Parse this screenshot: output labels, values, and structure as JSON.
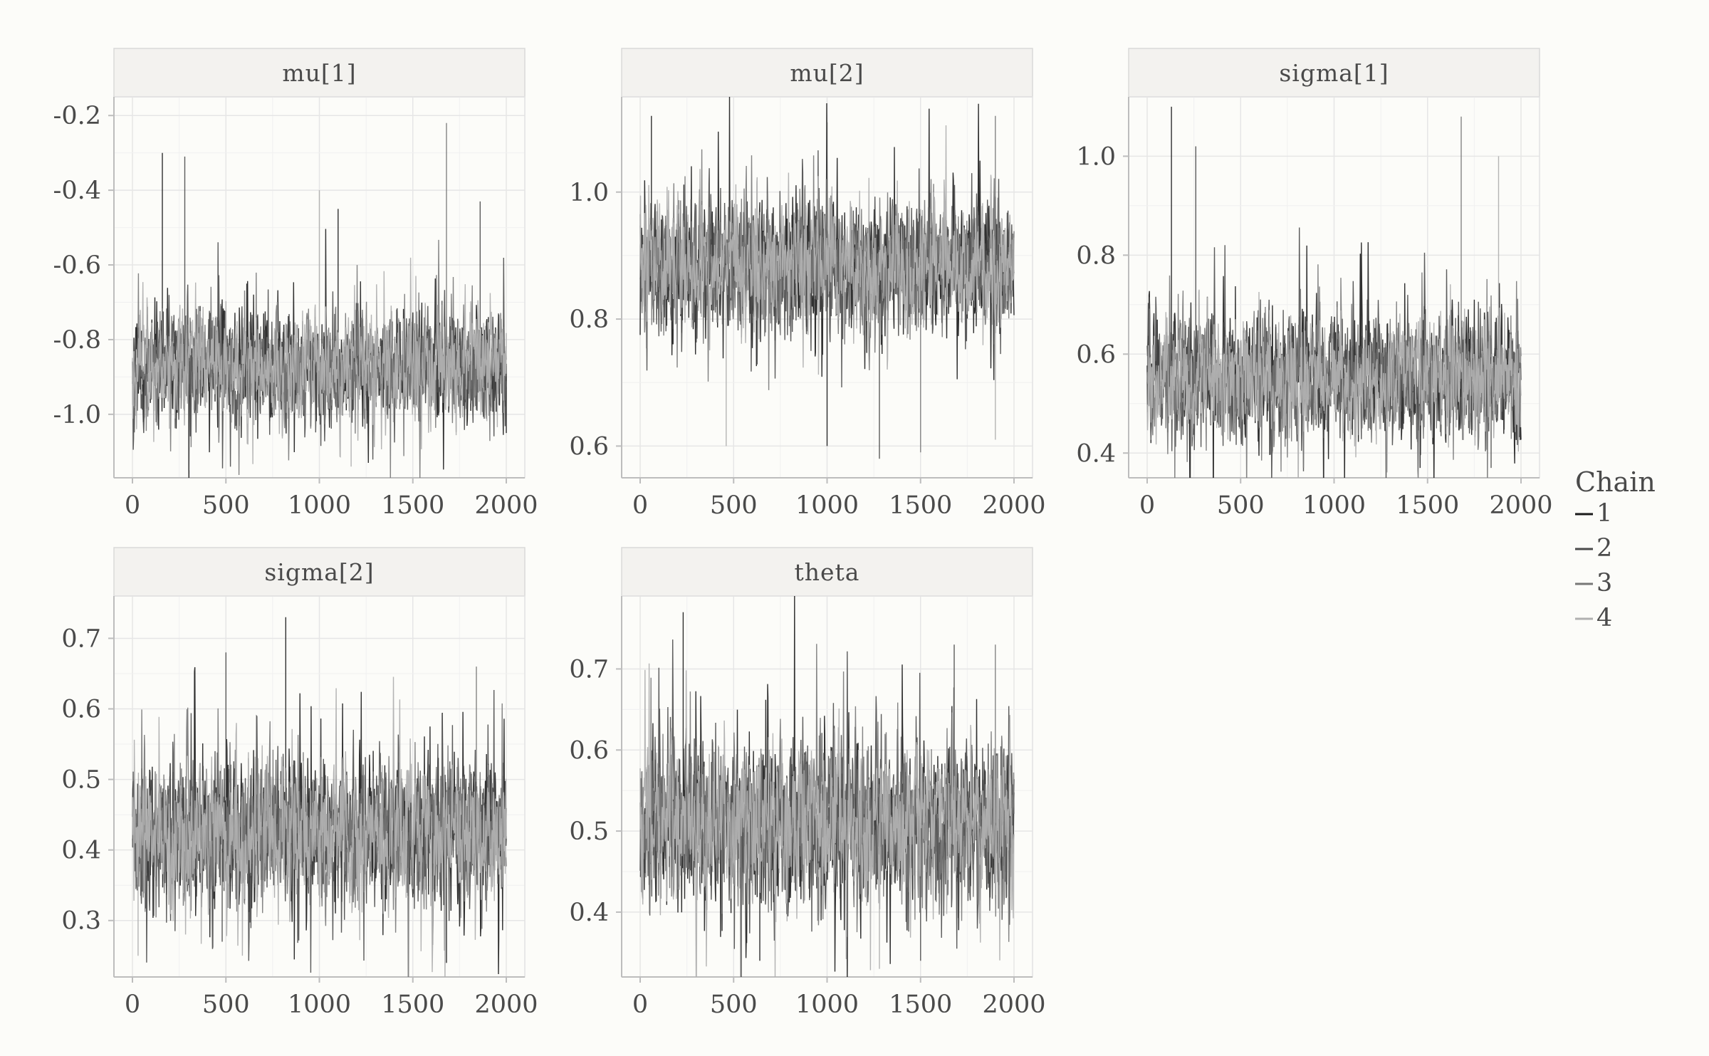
{
  "chart_data": {
    "type": "line",
    "legend": {
      "title": "Chain",
      "position": "right"
    },
    "series_colors": [
      "#1a1a1a",
      "#4a4a4a",
      "#777777",
      "#b0b0b0"
    ],
    "series": [
      {
        "name": "1",
        "color": "#1a1a1a"
      },
      {
        "name": "2",
        "color": "#4a4a4a"
      },
      {
        "name": "3",
        "color": "#777777"
      },
      {
        "name": "4",
        "color": "#b0b0b0"
      }
    ],
    "grid": true,
    "panels": [
      {
        "title": "mu[1]",
        "xlim": [
          0,
          2000
        ],
        "ylim": [
          -1.17,
          -0.15
        ],
        "xticks": [
          0,
          500,
          1000,
          1500,
          2000
        ],
        "xtick_labels": [
          "0",
          "500",
          "1000",
          "1500",
          "2000"
        ],
        "yticks": [
          -0.2,
          -0.4,
          -0.6,
          -0.8,
          -1.0
        ],
        "ytick_labels": [
          "-0.2",
          "-0.4",
          "-0.6",
          "-0.8",
          "-1.0"
        ],
        "center": -0.87,
        "spread": 0.065,
        "n_iterations": 2000,
        "extremes": [
          [
            160,
            -0.3
          ],
          [
            280,
            -0.31
          ],
          [
            1680,
            -0.22
          ],
          [
            1000,
            -0.4
          ],
          [
            1100,
            -0.45
          ],
          [
            1860,
            -0.43
          ],
          [
            300,
            -1.15
          ],
          [
            1170,
            -1.14
          ],
          [
            2000,
            -1.05
          ]
        ]
      },
      {
        "title": "mu[2]",
        "xlim": [
          0,
          2000
        ],
        "ylim": [
          0.55,
          1.15
        ],
        "xticks": [
          0,
          500,
          1000,
          1500,
          2000
        ],
        "xtick_labels": [
          "0",
          "500",
          "1000",
          "1500",
          "2000"
        ],
        "yticks": [
          1.0,
          0.8,
          0.6
        ],
        "ytick_labels": [
          "1.0",
          "0.8",
          "0.6"
        ],
        "center": 0.885,
        "spread": 0.045,
        "n_iterations": 2000,
        "extremes": [
          [
            60,
            1.12
          ],
          [
            1000,
            1.11
          ],
          [
            1900,
            1.12
          ],
          [
            460,
            0.6
          ],
          [
            1000,
            0.6
          ],
          [
            1280,
            0.58
          ],
          [
            1500,
            0.59
          ],
          [
            1900,
            0.61
          ]
        ]
      },
      {
        "title": "sigma[1]",
        "xlim": [
          0,
          2000
        ],
        "ylim": [
          0.35,
          1.12
        ],
        "xticks": [
          0,
          500,
          1000,
          1500,
          2000
        ],
        "xtick_labels": [
          "0",
          "500",
          "1000",
          "1500",
          "2000"
        ],
        "yticks": [
          1.0,
          0.8,
          0.6,
          0.4
        ],
        "ytick_labels": [
          "1.0",
          "0.8",
          "0.6",
          "0.4"
        ],
        "center": 0.55,
        "spread": 0.055,
        "n_iterations": 2000,
        "extremes": [
          [
            130,
            1.1
          ],
          [
            260,
            1.02
          ],
          [
            1680,
            1.08
          ],
          [
            1880,
            1.0
          ],
          [
            1460,
            0.37
          ],
          [
            1840,
            0.37
          ]
        ]
      },
      {
        "title": "sigma[2]",
        "xlim": [
          0,
          2000
        ],
        "ylim": [
          0.22,
          0.76
        ],
        "xticks": [
          0,
          500,
          1000,
          1500,
          2000
        ],
        "xtick_labels": [
          "0",
          "500",
          "1000",
          "1500",
          "2000"
        ],
        "yticks": [
          0.7,
          0.6,
          0.5,
          0.4,
          0.3
        ],
        "ytick_labels": [
          "0.7",
          "0.6",
          "0.5",
          "0.4",
          "0.3"
        ],
        "center": 0.425,
        "spread": 0.045,
        "n_iterations": 2000,
        "extremes": [
          [
            820,
            0.73
          ],
          [
            500,
            0.68
          ],
          [
            1840,
            0.66
          ],
          [
            30,
            0.25
          ],
          [
            1680,
            0.24
          ],
          [
            480,
            0.27
          ]
        ]
      },
      {
        "title": "theta",
        "xlim": [
          0,
          2000
        ],
        "ylim": [
          0.32,
          0.79
        ],
        "xticks": [
          0,
          500,
          1000,
          1500,
          2000
        ],
        "xtick_labels": [
          "0",
          "500",
          "1000",
          "1500",
          "2000"
        ],
        "yticks": [
          0.7,
          0.6,
          0.5,
          0.4
        ],
        "ytick_labels": [
          "0.7",
          "0.6",
          "0.5",
          "0.4"
        ],
        "center": 0.51,
        "spread": 0.045,
        "n_iterations": 2000,
        "extremes": [
          [
            230,
            0.77
          ],
          [
            1680,
            0.73
          ],
          [
            1900,
            0.73
          ],
          [
            1280,
            0.33
          ],
          [
            640,
            0.34
          ],
          [
            1500,
            0.34
          ]
        ]
      }
    ]
  }
}
